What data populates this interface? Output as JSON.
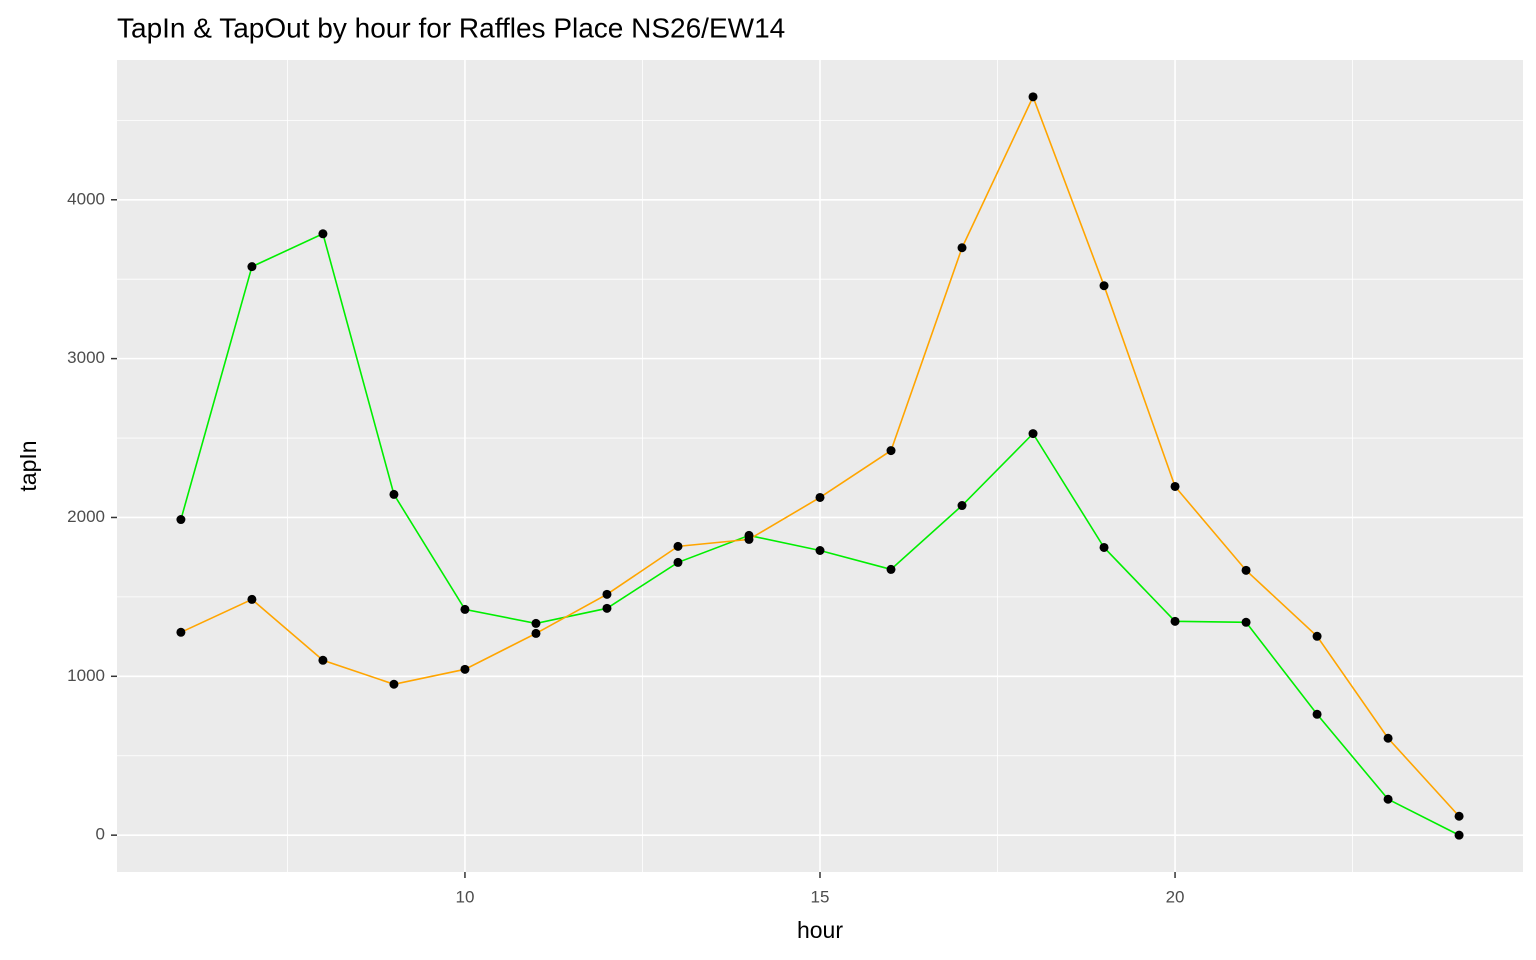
{
  "chart_data": {
    "type": "line",
    "title": "TapIn & TapOut by hour for Raffles Place NS26/EW14",
    "x_label": "hour",
    "y_label": "tapIn",
    "x": [
      6,
      7,
      8,
      9,
      10,
      11,
      12,
      13,
      14,
      15,
      16,
      17,
      18,
      19,
      20,
      21,
      22,
      23,
      24
    ],
    "series": [
      {
        "color": "#00ee00",
        "values": [
          1987,
          3579,
          3786,
          2145,
          1421,
          1333,
          1428,
          1717,
          1887,
          1792,
          1673,
          2075,
          2528,
          1811,
          1346,
          1340,
          761,
          226,
          0
        ]
      },
      {
        "color": "#ffa500",
        "values": [
          1277,
          1484,
          1101,
          950,
          1044,
          1270,
          1516,
          1818,
          1862,
          2126,
          2421,
          3698,
          4648,
          3459,
          2195,
          1667,
          1252,
          610,
          119
        ]
      }
    ],
    "point_color": "#000000",
    "xlim": [
      5.1,
      24.9
    ],
    "xticks": [
      10,
      15,
      20
    ],
    "xminorticks": [
      7.5,
      12.5,
      17.5,
      22.5
    ],
    "ylim": [
      -232,
      4880
    ],
    "yticks": [
      0,
      1000,
      2000,
      3000,
      4000
    ],
    "yminorticks": [
      500,
      1500,
      2500,
      3500,
      4500
    ],
    "grid": true
  }
}
